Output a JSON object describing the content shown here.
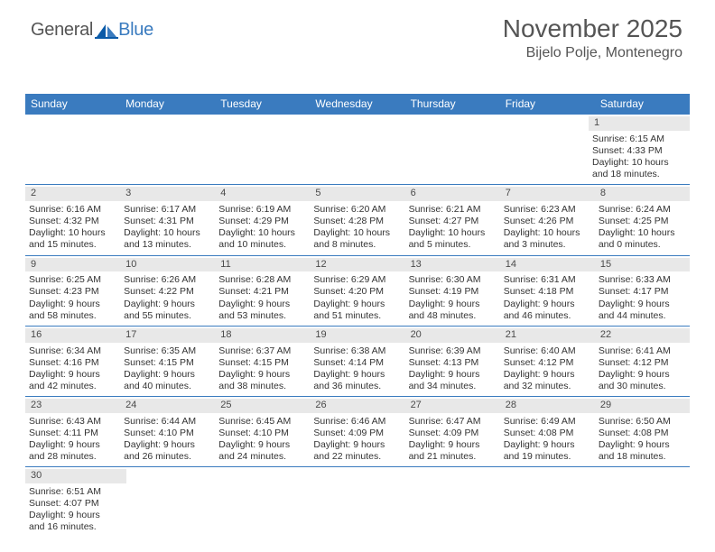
{
  "logo": {
    "text_left": "General",
    "text_right": "Blue"
  },
  "title": {
    "month_year": "November 2025",
    "location": "Bijelo Polje, Montenegro"
  },
  "colors": {
    "header_bg": "#3a7bbf",
    "header_fg": "#ffffff",
    "daynum_bg": "#e8e8e8",
    "row_border": "#3a7bbf",
    "title_color": "#555555",
    "body_bg": "#ffffff",
    "text_color": "#333333"
  },
  "calendar": {
    "day_headers": [
      "Sunday",
      "Monday",
      "Tuesday",
      "Wednesday",
      "Thursday",
      "Friday",
      "Saturday"
    ],
    "weeks": [
      [
        {
          "empty": true
        },
        {
          "empty": true
        },
        {
          "empty": true
        },
        {
          "empty": true
        },
        {
          "empty": true
        },
        {
          "empty": true
        },
        {
          "day": "1",
          "sunrise": "Sunrise: 6:15 AM",
          "sunset": "Sunset: 4:33 PM",
          "daylight1": "Daylight: 10 hours",
          "daylight2": "and 18 minutes."
        }
      ],
      [
        {
          "day": "2",
          "sunrise": "Sunrise: 6:16 AM",
          "sunset": "Sunset: 4:32 PM",
          "daylight1": "Daylight: 10 hours",
          "daylight2": "and 15 minutes."
        },
        {
          "day": "3",
          "sunrise": "Sunrise: 6:17 AM",
          "sunset": "Sunset: 4:31 PM",
          "daylight1": "Daylight: 10 hours",
          "daylight2": "and 13 minutes."
        },
        {
          "day": "4",
          "sunrise": "Sunrise: 6:19 AM",
          "sunset": "Sunset: 4:29 PM",
          "daylight1": "Daylight: 10 hours",
          "daylight2": "and 10 minutes."
        },
        {
          "day": "5",
          "sunrise": "Sunrise: 6:20 AM",
          "sunset": "Sunset: 4:28 PM",
          "daylight1": "Daylight: 10 hours",
          "daylight2": "and 8 minutes."
        },
        {
          "day": "6",
          "sunrise": "Sunrise: 6:21 AM",
          "sunset": "Sunset: 4:27 PM",
          "daylight1": "Daylight: 10 hours",
          "daylight2": "and 5 minutes."
        },
        {
          "day": "7",
          "sunrise": "Sunrise: 6:23 AM",
          "sunset": "Sunset: 4:26 PM",
          "daylight1": "Daylight: 10 hours",
          "daylight2": "and 3 minutes."
        },
        {
          "day": "8",
          "sunrise": "Sunrise: 6:24 AM",
          "sunset": "Sunset: 4:25 PM",
          "daylight1": "Daylight: 10 hours",
          "daylight2": "and 0 minutes."
        }
      ],
      [
        {
          "day": "9",
          "sunrise": "Sunrise: 6:25 AM",
          "sunset": "Sunset: 4:23 PM",
          "daylight1": "Daylight: 9 hours",
          "daylight2": "and 58 minutes."
        },
        {
          "day": "10",
          "sunrise": "Sunrise: 6:26 AM",
          "sunset": "Sunset: 4:22 PM",
          "daylight1": "Daylight: 9 hours",
          "daylight2": "and 55 minutes."
        },
        {
          "day": "11",
          "sunrise": "Sunrise: 6:28 AM",
          "sunset": "Sunset: 4:21 PM",
          "daylight1": "Daylight: 9 hours",
          "daylight2": "and 53 minutes."
        },
        {
          "day": "12",
          "sunrise": "Sunrise: 6:29 AM",
          "sunset": "Sunset: 4:20 PM",
          "daylight1": "Daylight: 9 hours",
          "daylight2": "and 51 minutes."
        },
        {
          "day": "13",
          "sunrise": "Sunrise: 6:30 AM",
          "sunset": "Sunset: 4:19 PM",
          "daylight1": "Daylight: 9 hours",
          "daylight2": "and 48 minutes."
        },
        {
          "day": "14",
          "sunrise": "Sunrise: 6:31 AM",
          "sunset": "Sunset: 4:18 PM",
          "daylight1": "Daylight: 9 hours",
          "daylight2": "and 46 minutes."
        },
        {
          "day": "15",
          "sunrise": "Sunrise: 6:33 AM",
          "sunset": "Sunset: 4:17 PM",
          "daylight1": "Daylight: 9 hours",
          "daylight2": "and 44 minutes."
        }
      ],
      [
        {
          "day": "16",
          "sunrise": "Sunrise: 6:34 AM",
          "sunset": "Sunset: 4:16 PM",
          "daylight1": "Daylight: 9 hours",
          "daylight2": "and 42 minutes."
        },
        {
          "day": "17",
          "sunrise": "Sunrise: 6:35 AM",
          "sunset": "Sunset: 4:15 PM",
          "daylight1": "Daylight: 9 hours",
          "daylight2": "and 40 minutes."
        },
        {
          "day": "18",
          "sunrise": "Sunrise: 6:37 AM",
          "sunset": "Sunset: 4:15 PM",
          "daylight1": "Daylight: 9 hours",
          "daylight2": "and 38 minutes."
        },
        {
          "day": "19",
          "sunrise": "Sunrise: 6:38 AM",
          "sunset": "Sunset: 4:14 PM",
          "daylight1": "Daylight: 9 hours",
          "daylight2": "and 36 minutes."
        },
        {
          "day": "20",
          "sunrise": "Sunrise: 6:39 AM",
          "sunset": "Sunset: 4:13 PM",
          "daylight1": "Daylight: 9 hours",
          "daylight2": "and 34 minutes."
        },
        {
          "day": "21",
          "sunrise": "Sunrise: 6:40 AM",
          "sunset": "Sunset: 4:12 PM",
          "daylight1": "Daylight: 9 hours",
          "daylight2": "and 32 minutes."
        },
        {
          "day": "22",
          "sunrise": "Sunrise: 6:41 AM",
          "sunset": "Sunset: 4:12 PM",
          "daylight1": "Daylight: 9 hours",
          "daylight2": "and 30 minutes."
        }
      ],
      [
        {
          "day": "23",
          "sunrise": "Sunrise: 6:43 AM",
          "sunset": "Sunset: 4:11 PM",
          "daylight1": "Daylight: 9 hours",
          "daylight2": "and 28 minutes."
        },
        {
          "day": "24",
          "sunrise": "Sunrise: 6:44 AM",
          "sunset": "Sunset: 4:10 PM",
          "daylight1": "Daylight: 9 hours",
          "daylight2": "and 26 minutes."
        },
        {
          "day": "25",
          "sunrise": "Sunrise: 6:45 AM",
          "sunset": "Sunset: 4:10 PM",
          "daylight1": "Daylight: 9 hours",
          "daylight2": "and 24 minutes."
        },
        {
          "day": "26",
          "sunrise": "Sunrise: 6:46 AM",
          "sunset": "Sunset: 4:09 PM",
          "daylight1": "Daylight: 9 hours",
          "daylight2": "and 22 minutes."
        },
        {
          "day": "27",
          "sunrise": "Sunrise: 6:47 AM",
          "sunset": "Sunset: 4:09 PM",
          "daylight1": "Daylight: 9 hours",
          "daylight2": "and 21 minutes."
        },
        {
          "day": "28",
          "sunrise": "Sunrise: 6:49 AM",
          "sunset": "Sunset: 4:08 PM",
          "daylight1": "Daylight: 9 hours",
          "daylight2": "and 19 minutes."
        },
        {
          "day": "29",
          "sunrise": "Sunrise: 6:50 AM",
          "sunset": "Sunset: 4:08 PM",
          "daylight1": "Daylight: 9 hours",
          "daylight2": "and 18 minutes."
        }
      ],
      [
        {
          "day": "30",
          "sunrise": "Sunrise: 6:51 AM",
          "sunset": "Sunset: 4:07 PM",
          "daylight1": "Daylight: 9 hours",
          "daylight2": "and 16 minutes."
        },
        {
          "empty": true
        },
        {
          "empty": true
        },
        {
          "empty": true
        },
        {
          "empty": true
        },
        {
          "empty": true
        },
        {
          "empty": true
        }
      ]
    ]
  }
}
